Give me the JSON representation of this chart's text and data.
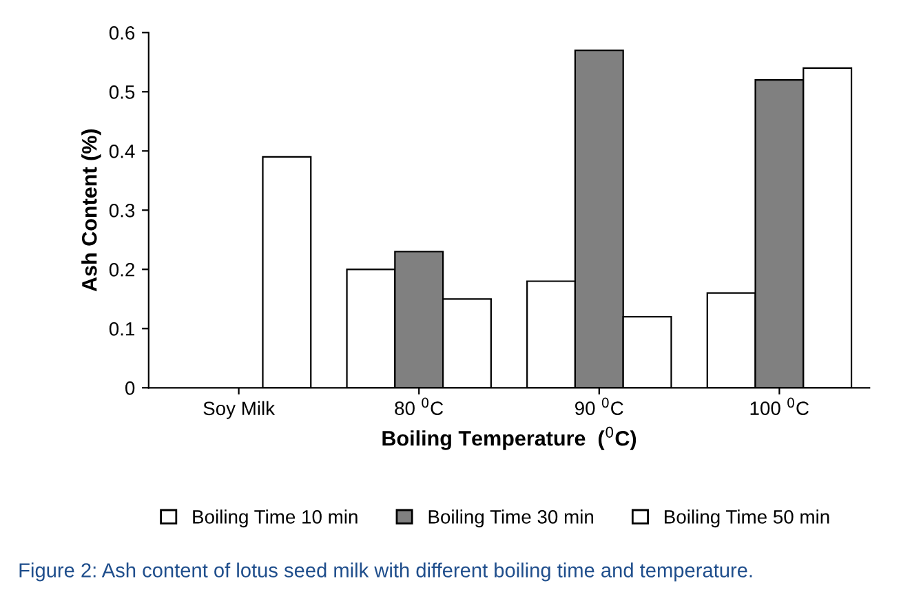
{
  "chart_data": {
    "type": "bar",
    "xlabel": "Boiling Temperature  ($^{0}$C)",
    "ylabel": "Ash Content (%)",
    "categories": [
      "Soy Milk",
      "80 $^{0}$C",
      "90 $^{0}$C",
      "100 $^{0}$C"
    ],
    "series": [
      {
        "name": "Boiling Time 10 min",
        "color": "#ffffff",
        "values": [
          null,
          0.2,
          0.18,
          0.16
        ]
      },
      {
        "name": "Boiling Time 30 min",
        "color": "#808080",
        "values": [
          null,
          0.23,
          0.57,
          0.52
        ]
      },
      {
        "name": "Boiling Time 50 min",
        "color": "#ffffff",
        "values": [
          0.39,
          0.15,
          0.12,
          0.54
        ]
      }
    ],
    "ylim": [
      0,
      0.6
    ],
    "yticks": [
      0,
      0.1,
      0.2,
      0.3,
      0.4,
      0.5,
      0.6
    ],
    "grid": false,
    "legend": "bottom",
    "annotations": [
      "Figure 2: Ash content of lotus seed milk with different boiling time and temperature."
    ]
  }
}
